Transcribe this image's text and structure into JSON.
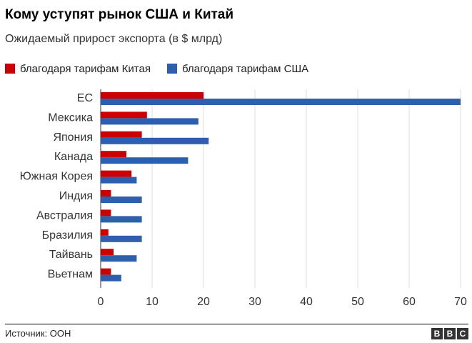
{
  "title": "Кому уступят рынок США и Китай",
  "subtitle": "Ожидаемый прирост экспорта (в $ млрд)",
  "source": "Источник: ООН",
  "logo": [
    "B",
    "B",
    "C"
  ],
  "colors": {
    "china": "#cc0000",
    "usa": "#2d5fae",
    "grid": "#dddddd",
    "axis": "#333333"
  },
  "chart_data": {
    "type": "bar",
    "orientation": "horizontal",
    "categories": [
      "ЕС",
      "Мексика",
      "Япония",
      "Канада",
      "Южная Корея",
      "Индия",
      "Австралия",
      "Бразилия",
      "Тайвань",
      "Вьетнам"
    ],
    "series": [
      {
        "name": "благодаря тарифам Китая",
        "color": "#cc0000",
        "values": [
          20,
          9,
          8,
          5,
          6,
          2,
          2,
          1.5,
          2.5,
          2
        ]
      },
      {
        "name": "благодаря тарифам США",
        "color": "#2d5fae",
        "values": [
          70,
          19,
          21,
          17,
          7,
          8,
          8,
          8,
          7,
          4
        ]
      }
    ],
    "xlim": [
      0,
      70
    ],
    "xticks": [
      0,
      10,
      20,
      30,
      40,
      50,
      60,
      70
    ],
    "grid": true,
    "legend": "top-left",
    "xlabel": "",
    "ylabel": ""
  }
}
